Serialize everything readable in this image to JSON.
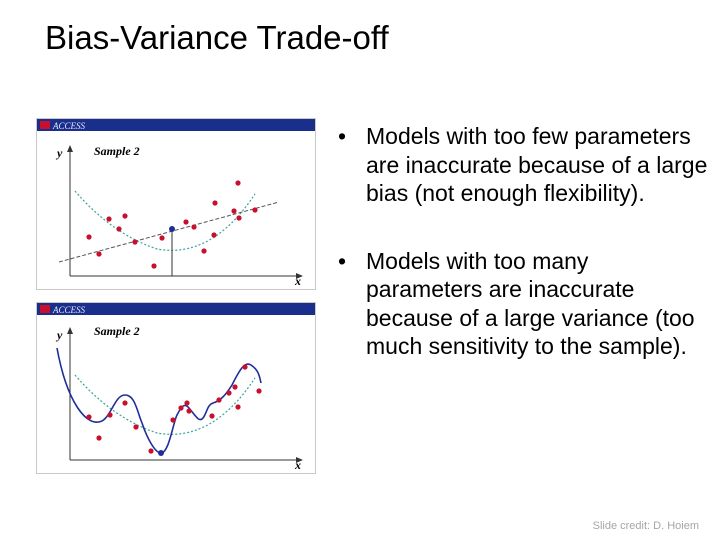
{
  "slide": {
    "title": "Bias-Variance Trade-off",
    "credit": "Slide credit: D. Hoiem"
  },
  "figures": {
    "top": {
      "banner": "ACCESS",
      "label": "Sample 2",
      "y_axis": "y",
      "x_axis": "x"
    },
    "bottom": {
      "banner": "ACCESS",
      "label": "Sample 2",
      "y_axis": "y",
      "x_axis": "x"
    }
  },
  "bullets": [
    {
      "symbol": "•",
      "text": "Models with too few parameters are inaccurate because of a large bias (not enough flexibility)."
    },
    {
      "symbol": "•",
      "text": "Models with too many parameters are inaccurate because of a large variance (too much sensitivity to the sample)."
    }
  ],
  "colors": {
    "banner": "#1a2f8c",
    "banner_text": "#e8e8ff",
    "points": "#c8102e",
    "fit_curve": "#1e2f9a",
    "true_curve": "#3aa39b",
    "axis": "#333333"
  }
}
